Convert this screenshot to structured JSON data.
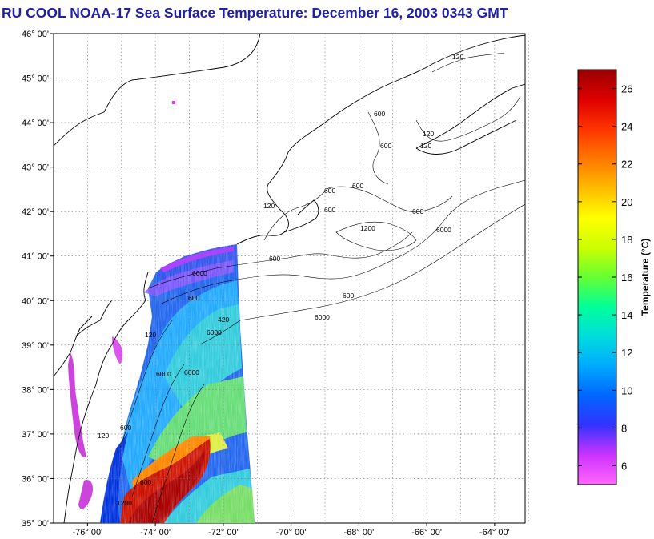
{
  "title": "RU COOL  NOAA-17  Sea Surface Temperature:  December 16, 2003 0343 GMT",
  "latitude_ticks": [
    {
      "label": "46° 00'",
      "value": 46
    },
    {
      "label": "45° 00'",
      "value": 45
    },
    {
      "label": "44° 00'",
      "value": 44
    },
    {
      "label": "43° 00'",
      "value": 43
    },
    {
      "label": "42° 00'",
      "value": 42
    },
    {
      "label": "41° 00'",
      "value": 41
    },
    {
      "label": "40° 00'",
      "value": 40
    },
    {
      "label": "39° 00'",
      "value": 39
    },
    {
      "label": "38° 00'",
      "value": 38
    },
    {
      "label": "37° 00'",
      "value": 37
    },
    {
      "label": "36° 00'",
      "value": 36
    },
    {
      "label": "35° 00'",
      "value": 35
    }
  ],
  "longitude_ticks": [
    {
      "label": "-76° 00'",
      "value": -76
    },
    {
      "label": "-74° 00'",
      "value": -74
    },
    {
      "label": "-72° 00'",
      "value": -72
    },
    {
      "label": "-70° 00'",
      "value": -70
    },
    {
      "label": "-68° 00'",
      "value": -68
    },
    {
      "label": "-66° 00'",
      "value": -66
    },
    {
      "label": "-64° 00'",
      "value": -64
    }
  ],
  "map_extent": {
    "lon_min": -77,
    "lon_max": -63.1,
    "lat_min": 35,
    "lat_max": 46
  },
  "contour_labels": [
    "120",
    "600",
    "600",
    "600",
    "600",
    "1200",
    "600",
    "6000",
    "600",
    "6000",
    "600",
    "6000",
    "420",
    "120",
    "6000",
    "120",
    "600",
    "1200",
    "600",
    "6000",
    "120",
    "600",
    "6000",
    "120",
    "600",
    "120"
  ],
  "colorbar": {
    "label": "Temperature (°C)",
    "range": [
      5,
      27
    ],
    "ticks": [
      "6",
      "8",
      "10",
      "12",
      "14",
      "16",
      "18",
      "20",
      "22",
      "24",
      "26"
    ],
    "tick_values": [
      6,
      8,
      10,
      12,
      14,
      16,
      18,
      20,
      22,
      24,
      26
    ],
    "colors": [
      "#ff66ff",
      "#cc33ff",
      "#3333ff",
      "#0066ff",
      "#00aaff",
      "#00dddd",
      "#00ff99",
      "#66ff33",
      "#ccff00",
      "#ffff00",
      "#ffbb00",
      "#ff7700",
      "#ff3300",
      "#dd0000",
      "#990000"
    ]
  },
  "sst_colors": {
    "magenta": "#cc44dd",
    "pink": "#ee66ee",
    "violet": "#7744ff",
    "blue": "#2244ee",
    "lightblue": "#2299ff",
    "cyan": "#33ccdd",
    "green": "#66dd66",
    "yellow": "#ddee44",
    "orange": "#ff8800",
    "red": "#dd2200",
    "darkred": "#aa0000"
  }
}
